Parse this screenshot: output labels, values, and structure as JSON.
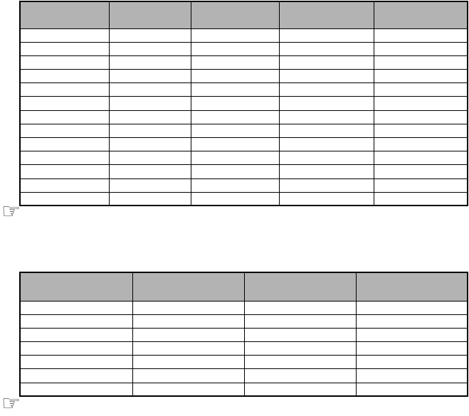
{
  "page": {
    "type": "manual-timing-chart-page"
  },
  "colors": {
    "header_fill": "#b3b3b3",
    "border": "#000000",
    "page_background": "#ffffff",
    "icon": "#3f3f3f"
  },
  "tables": [
    {
      "name": "timing-table-1",
      "header_cells": [
        "",
        "",
        "",
        "",
        ""
      ],
      "rows": [
        [
          "",
          "",
          "",
          "",
          ""
        ],
        [
          "",
          "",
          "",
          "",
          ""
        ],
        [
          "",
          "",
          "",
          "",
          ""
        ],
        [
          "",
          "",
          "",
          "",
          ""
        ],
        [
          "",
          "",
          "",
          "",
          ""
        ],
        [
          "",
          "",
          "",
          "",
          ""
        ],
        [
          "",
          "",
          "",
          "",
          ""
        ],
        [
          "",
          "",
          "",
          "",
          ""
        ],
        [
          "",
          "",
          "",
          "",
          ""
        ],
        [
          "",
          "",
          "",
          "",
          ""
        ],
        [
          "",
          "",
          "",
          "",
          ""
        ],
        [
          "",
          "",
          "",
          "",
          ""
        ],
        [
          "",
          "",
          "",
          "",
          ""
        ]
      ]
    },
    {
      "name": "timing-table-2",
      "header_cells": [
        "",
        "",
        "",
        ""
      ],
      "rows": [
        [
          "",
          "",
          "",
          ""
        ],
        [
          "",
          "",
          "",
          ""
        ],
        [
          "",
          "",
          "",
          ""
        ],
        [
          "",
          "",
          "",
          ""
        ],
        [
          "",
          "",
          "",
          ""
        ],
        [
          "",
          "",
          "",
          ""
        ],
        [
          "",
          "",
          "",
          ""
        ]
      ]
    }
  ],
  "notes": [
    {
      "icon": "pointing-hand-icon",
      "glyph": "☞"
    },
    {
      "icon": "pointing-hand-icon",
      "glyph": "☞"
    }
  ]
}
